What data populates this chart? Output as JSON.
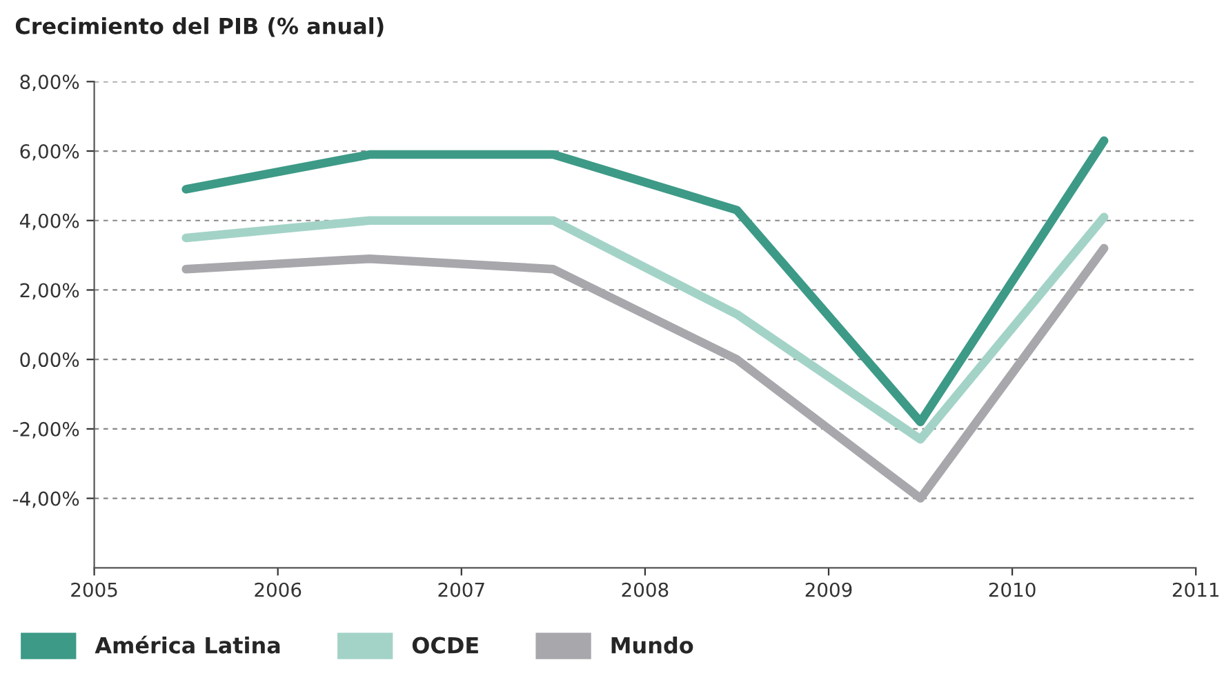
{
  "chart_data": {
    "type": "line",
    "title": "Crecimiento del PIB (% anual)",
    "x": [
      2005.5,
      2006.5,
      2007.5,
      2008.5,
      2009.5,
      2010.5
    ],
    "series": [
      {
        "name": "América Latina",
        "color": "#3d9a87",
        "values": [
          4.9,
          5.9,
          5.9,
          4.3,
          -1.8,
          6.3
        ]
      },
      {
        "name": "OCDE",
        "color": "#a3d3c7",
        "values": [
          3.5,
          4.0,
          4.0,
          1.3,
          -2.3,
          4.1
        ]
      },
      {
        "name": "Mundo",
        "color": "#a7a7ac",
        "values": [
          2.6,
          2.9,
          2.6,
          0.0,
          -4.0,
          3.2
        ]
      }
    ],
    "xlim": [
      2005,
      2011
    ],
    "xticks": [
      2005,
      2006,
      2007,
      2008,
      2009,
      2010,
      2011
    ],
    "ylim": [
      -6,
      8
    ],
    "yticks": [
      {
        "value": -4,
        "label": "-4,00%"
      },
      {
        "value": -2,
        "label": "-2,00%"
      },
      {
        "value": 0,
        "label": "0,00%"
      },
      {
        "value": 2,
        "label": "2,00%"
      },
      {
        "value": 4,
        "label": "4,00%"
      },
      {
        "value": 6,
        "label": "6,00%"
      },
      {
        "value": 8,
        "label": "8,00%"
      }
    ],
    "grid": "y",
    "legend": "bottom left",
    "marker": "none",
    "line_style": "solid"
  }
}
